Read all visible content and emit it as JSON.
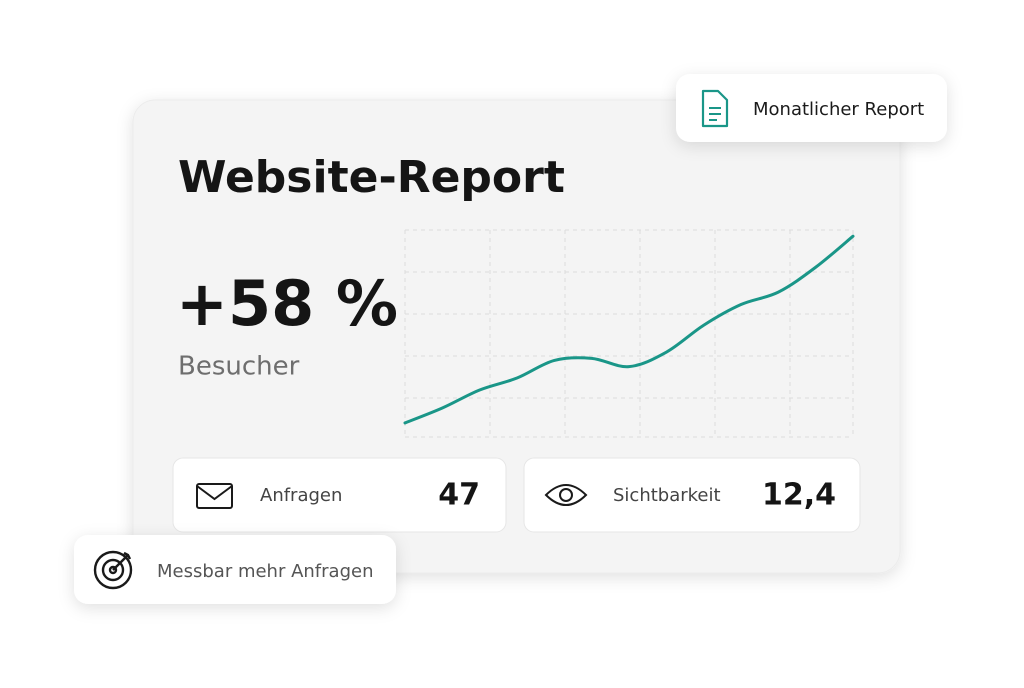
{
  "card": {
    "title": "Website-Report",
    "stat": "+58 %",
    "stat_label": "Besucher",
    "trend": {
      "type": "line",
      "values": [
        6.8,
        14,
        22.7,
        28.5,
        37,
        38,
        34,
        41,
        54,
        64,
        70,
        82,
        97
      ],
      "ylim": [
        0,
        100
      ],
      "color": "#1a9688"
    },
    "metrics": [
      {
        "label": "Anfragen",
        "value": "47"
      },
      {
        "label": "Sichtbarkeit",
        "value": "12,4"
      }
    ]
  },
  "badges": [
    {
      "label": "Monatlicher Report"
    },
    {
      "label": "Messbar mehr Anfragen"
    }
  ]
}
